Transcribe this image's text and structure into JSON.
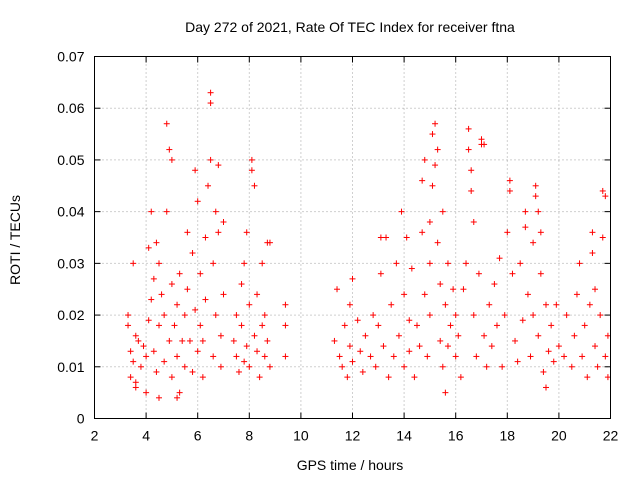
{
  "chart_data": {
    "type": "scatter",
    "title": "Day 272 of 2021, Rate Of TEC Index for receiver ftna",
    "xlabel": "GPS time / hours",
    "ylabel": "ROTI / TECUs",
    "xlim": [
      2,
      22
    ],
    "ylim": [
      0,
      0.07
    ],
    "xticks": [
      "2",
      "4",
      "6",
      "8",
      "10",
      "12",
      "14",
      "16",
      "18",
      "20",
      "22"
    ],
    "yticks": [
      "0",
      "0.01",
      "0.02",
      "0.03",
      "0.04",
      "0.05",
      "0.06",
      "0.07"
    ],
    "grid": true,
    "marker": "plus",
    "color": "#ff0000",
    "series": [
      {
        "points": [
          [
            3.3,
            0.018
          ],
          [
            3.4,
            0.013
          ],
          [
            3.5,
            0.011
          ],
          [
            3.6,
            0.016
          ],
          [
            3.4,
            0.008
          ],
          [
            3.6,
            0.007
          ],
          [
            3.7,
            0.015
          ],
          [
            3.3,
            0.02
          ],
          [
            3.5,
            0.03
          ],
          [
            3.8,
            0.01
          ],
          [
            3.9,
            0.014
          ],
          [
            4.0,
            0.012
          ],
          [
            4.0,
            0.005
          ],
          [
            4.1,
            0.019
          ],
          [
            4.1,
            0.033
          ],
          [
            4.2,
            0.023
          ],
          [
            4.2,
            0.04
          ],
          [
            4.3,
            0.027
          ],
          [
            4.3,
            0.013
          ],
          [
            4.4,
            0.009
          ],
          [
            4.4,
            0.034
          ],
          [
            4.5,
            0.03
          ],
          [
            4.5,
            0.018
          ],
          [
            4.6,
            0.024
          ],
          [
            4.7,
            0.011
          ],
          [
            4.7,
            0.02
          ],
          [
            4.8,
            0.057
          ],
          [
            4.8,
            0.04
          ],
          [
            4.9,
            0.052
          ],
          [
            4.9,
            0.015
          ],
          [
            5.0,
            0.05
          ],
          [
            5.0,
            0.026
          ],
          [
            5.0,
            0.008
          ],
          [
            5.1,
            0.018
          ],
          [
            5.2,
            0.012
          ],
          [
            5.2,
            0.022
          ],
          [
            5.3,
            0.005
          ],
          [
            5.3,
            0.028
          ],
          [
            5.4,
            0.015
          ],
          [
            5.5,
            0.02
          ],
          [
            5.5,
            0.01
          ],
          [
            5.6,
            0.036
          ],
          [
            5.6,
            0.025
          ],
          [
            5.7,
            0.015
          ],
          [
            5.8,
            0.009
          ],
          [
            5.8,
            0.032
          ],
          [
            5.9,
            0.021
          ],
          [
            5.9,
            0.048
          ],
          [
            6.0,
            0.013
          ],
          [
            6.0,
            0.042
          ],
          [
            6.1,
            0.018
          ],
          [
            6.1,
            0.028
          ],
          [
            6.2,
            0.008
          ],
          [
            6.2,
            0.015
          ],
          [
            6.3,
            0.023
          ],
          [
            6.3,
            0.035
          ],
          [
            6.4,
            0.045
          ],
          [
            6.5,
            0.063
          ],
          [
            6.5,
            0.061
          ],
          [
            6.5,
            0.05
          ],
          [
            6.6,
            0.012
          ],
          [
            6.6,
            0.03
          ],
          [
            6.7,
            0.02
          ],
          [
            6.7,
            0.04
          ],
          [
            6.8,
            0.049
          ],
          [
            6.8,
            0.036
          ],
          [
            6.9,
            0.016
          ],
          [
            6.9,
            0.01
          ],
          [
            7.0,
            0.038
          ],
          [
            7.0,
            0.024
          ],
          [
            7.4,
            0.015
          ],
          [
            7.5,
            0.012
          ],
          [
            7.5,
            0.02
          ],
          [
            7.6,
            0.009
          ],
          [
            7.7,
            0.026
          ],
          [
            7.7,
            0.018
          ],
          [
            7.8,
            0.011
          ],
          [
            7.8,
            0.03
          ],
          [
            7.9,
            0.014
          ],
          [
            7.9,
            0.036
          ],
          [
            8.0,
            0.022
          ],
          [
            8.0,
            0.01
          ],
          [
            8.1,
            0.05
          ],
          [
            8.1,
            0.048
          ],
          [
            8.2,
            0.045
          ],
          [
            8.2,
            0.016
          ],
          [
            8.3,
            0.013
          ],
          [
            8.3,
            0.024
          ],
          [
            8.4,
            0.008
          ],
          [
            8.5,
            0.018
          ],
          [
            8.5,
            0.03
          ],
          [
            8.6,
            0.012
          ],
          [
            8.6,
            0.02
          ],
          [
            8.7,
            0.034
          ],
          [
            8.7,
            0.015
          ],
          [
            8.8,
            0.01
          ],
          [
            8.8,
            0.034
          ],
          [
            9.4,
            0.022
          ],
          [
            9.4,
            0.018
          ],
          [
            9.4,
            0.012
          ],
          [
            11.3,
            0.015
          ],
          [
            11.4,
            0.025
          ],
          [
            11.5,
            0.012
          ],
          [
            11.6,
            0.01
          ],
          [
            11.7,
            0.018
          ],
          [
            11.8,
            0.008
          ],
          [
            11.9,
            0.014
          ],
          [
            11.9,
            0.022
          ],
          [
            12.0,
            0.011
          ],
          [
            12.0,
            0.027
          ],
          [
            12.2,
            0.019
          ],
          [
            12.3,
            0.013
          ],
          [
            12.4,
            0.009
          ],
          [
            12.5,
            0.016
          ],
          [
            12.7,
            0.012
          ],
          [
            12.8,
            0.02
          ],
          [
            12.9,
            0.01
          ],
          [
            13.0,
            0.018
          ],
          [
            13.1,
            0.028
          ],
          [
            13.1,
            0.035
          ],
          [
            13.2,
            0.014
          ],
          [
            13.3,
            0.035
          ],
          [
            13.4,
            0.008
          ],
          [
            13.5,
            0.022
          ],
          [
            13.6,
            0.012
          ],
          [
            13.7,
            0.03
          ],
          [
            13.8,
            0.016
          ],
          [
            13.9,
            0.04
          ],
          [
            14.0,
            0.024
          ],
          [
            14.0,
            0.01
          ],
          [
            14.1,
            0.035
          ],
          [
            14.2,
            0.013
          ],
          [
            14.2,
            0.019
          ],
          [
            14.3,
            0.029
          ],
          [
            14.4,
            0.008
          ],
          [
            14.5,
            0.018
          ],
          [
            14.6,
            0.014
          ],
          [
            14.7,
            0.036
          ],
          [
            14.7,
            0.046
          ],
          [
            14.8,
            0.05
          ],
          [
            14.8,
            0.024
          ],
          [
            14.9,
            0.012
          ],
          [
            15.0,
            0.03
          ],
          [
            15.0,
            0.038
          ],
          [
            15.0,
            0.02
          ],
          [
            15.1,
            0.045
          ],
          [
            15.1,
            0.055
          ],
          [
            15.2,
            0.057
          ],
          [
            15.2,
            0.049
          ],
          [
            15.3,
            0.052
          ],
          [
            15.3,
            0.034
          ],
          [
            15.4,
            0.026
          ],
          [
            15.4,
            0.015
          ],
          [
            15.5,
            0.01
          ],
          [
            15.5,
            0.04
          ],
          [
            15.6,
            0.022
          ],
          [
            15.7,
            0.03
          ],
          [
            15.7,
            0.014
          ],
          [
            15.8,
            0.018
          ],
          [
            15.9,
            0.025
          ],
          [
            16.0,
            0.012
          ],
          [
            16.0,
            0.02
          ],
          [
            16.1,
            0.016
          ],
          [
            16.2,
            0.008
          ],
          [
            16.3,
            0.025
          ],
          [
            16.4,
            0.03
          ],
          [
            16.5,
            0.056
          ],
          [
            16.5,
            0.052
          ],
          [
            16.6,
            0.048
          ],
          [
            16.6,
            0.044
          ],
          [
            16.7,
            0.038
          ],
          [
            16.7,
            0.02
          ],
          [
            16.8,
            0.012
          ],
          [
            16.9,
            0.028
          ],
          [
            17.0,
            0.054
          ],
          [
            17.0,
            0.053
          ],
          [
            17.1,
            0.053
          ],
          [
            17.1,
            0.016
          ],
          [
            17.2,
            0.01
          ],
          [
            17.3,
            0.022
          ],
          [
            17.4,
            0.014
          ],
          [
            17.5,
            0.026
          ],
          [
            17.6,
            0.018
          ],
          [
            17.7,
            0.031
          ],
          [
            17.8,
            0.01
          ],
          [
            17.9,
            0.02
          ],
          [
            18.0,
            0.036
          ],
          [
            18.1,
            0.046
          ],
          [
            18.1,
            0.044
          ],
          [
            18.2,
            0.028
          ],
          [
            18.3,
            0.015
          ],
          [
            18.4,
            0.011
          ],
          [
            18.5,
            0.03
          ],
          [
            18.6,
            0.019
          ],
          [
            18.7,
            0.04
          ],
          [
            18.7,
            0.037
          ],
          [
            18.8,
            0.024
          ],
          [
            18.9,
            0.012
          ],
          [
            19.0,
            0.034
          ],
          [
            19.0,
            0.02
          ],
          [
            19.1,
            0.045
          ],
          [
            19.1,
            0.043
          ],
          [
            19.2,
            0.04
          ],
          [
            19.2,
            0.016
          ],
          [
            19.3,
            0.028
          ],
          [
            19.3,
            0.036
          ],
          [
            19.4,
            0.009
          ],
          [
            19.5,
            0.022
          ],
          [
            19.6,
            0.013
          ],
          [
            19.7,
            0.018
          ],
          [
            19.8,
            0.011
          ],
          [
            19.9,
            0.022
          ],
          [
            20.0,
            0.014
          ],
          [
            20.2,
            0.012
          ],
          [
            20.3,
            0.02
          ],
          [
            20.5,
            0.01
          ],
          [
            20.6,
            0.016
          ],
          [
            20.7,
            0.024
          ],
          [
            20.8,
            0.03
          ],
          [
            20.9,
            0.012
          ],
          [
            21.0,
            0.018
          ],
          [
            21.1,
            0.008
          ],
          [
            21.2,
            0.022
          ],
          [
            21.3,
            0.036
          ],
          [
            21.3,
            0.032
          ],
          [
            21.4,
            0.025
          ],
          [
            21.4,
            0.014
          ],
          [
            21.5,
            0.01
          ],
          [
            21.6,
            0.02
          ],
          [
            21.7,
            0.035
          ],
          [
            21.7,
            0.044
          ],
          [
            21.8,
            0.043
          ],
          [
            21.8,
            0.012
          ],
          [
            21.9,
            0.016
          ],
          [
            21.9,
            0.008
          ],
          [
            3.6,
            0.006
          ],
          [
            4.5,
            0.004
          ],
          [
            5.2,
            0.004
          ],
          [
            15.6,
            0.005
          ],
          [
            19.5,
            0.006
          ]
        ]
      }
    ]
  }
}
